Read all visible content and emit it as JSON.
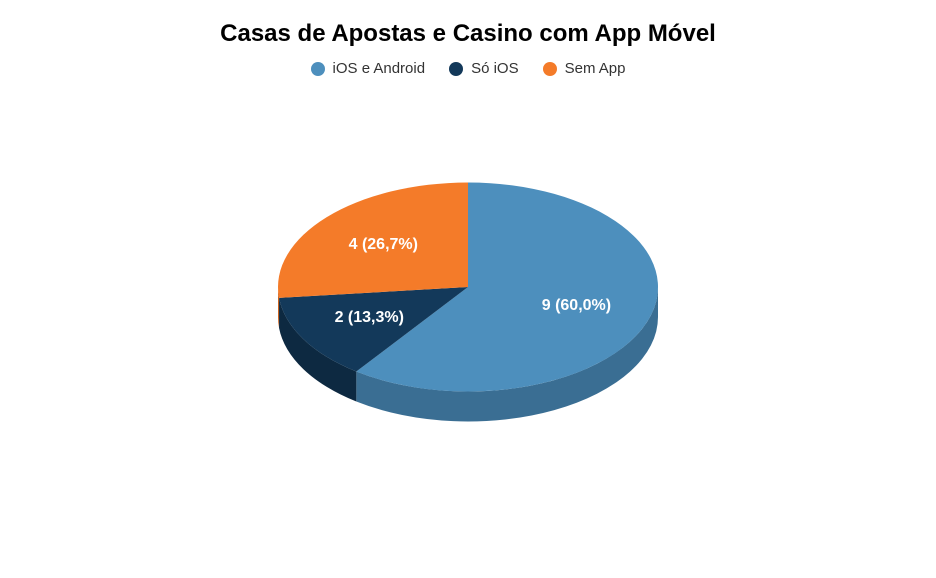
{
  "chart": {
    "type": "pie",
    "title": "Casas de Apostas e Casino com App Móvel",
    "title_fontsize": 24,
    "title_color": "#000000",
    "background_color": "#ffffff",
    "legend_fontsize": 15,
    "label_fontsize": 16,
    "label_color": "#ffffff",
    "depth_3d": 30,
    "tilt_ratio": 0.55,
    "slices": [
      {
        "label": "iOS e Android",
        "value": 9,
        "percent": "60,0%",
        "color": "#4d8fbd",
        "side_color": "#3a6e93"
      },
      {
        "label": "Só iOS",
        "value": 2,
        "percent": "13,3%",
        "color": "#13395a",
        "side_color": "#0d2941"
      },
      {
        "label": "Sem App",
        "value": 4,
        "percent": "26,7%",
        "color": "#f47b29",
        "side_color": "#c9621f"
      }
    ]
  }
}
